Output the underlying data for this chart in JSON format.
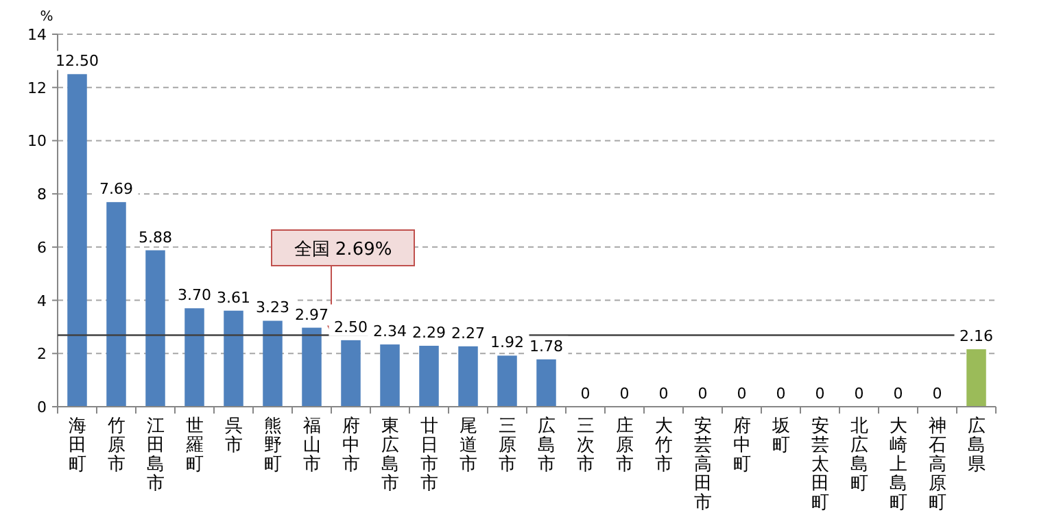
{
  "chart_data": {
    "type": "bar",
    "ylabel": "%",
    "categories": [
      "海田町",
      "竹原市",
      "江田島市",
      "世羅町",
      "呉市",
      "熊野町",
      "福山市",
      "府中市",
      "東広島市",
      "廿日市市",
      "尾道市",
      "三原市",
      "広島市",
      "三次市",
      "庄原市",
      "大竹市",
      "安芸高田市",
      "府中町",
      "坂町",
      "安芸太田町",
      "北広島町",
      "大崎上島町",
      "神石高原町",
      "広島県"
    ],
    "values": [
      12.5,
      7.69,
      5.88,
      3.7,
      3.61,
      3.23,
      2.97,
      2.5,
      2.34,
      2.29,
      2.27,
      1.92,
      1.78,
      0,
      0,
      0,
      0,
      0,
      0,
      0,
      0,
      0,
      0,
      2.16
    ],
    "value_labels": [
      "12.50",
      "7.69",
      "5.88",
      "3.70",
      "3.61",
      "3.23",
      "2.97",
      "2.50",
      "2.34",
      "2.29",
      "2.27",
      "1.92",
      "1.78",
      "0",
      "0",
      "0",
      "0",
      "0",
      "0",
      "0",
      "0",
      "0",
      "0",
      "2.16"
    ],
    "colors": [
      "#4f81bd",
      "#4f81bd",
      "#4f81bd",
      "#4f81bd",
      "#4f81bd",
      "#4f81bd",
      "#4f81bd",
      "#4f81bd",
      "#4f81bd",
      "#4f81bd",
      "#4f81bd",
      "#4f81bd",
      "#4f81bd",
      "#4f81bd",
      "#4f81bd",
      "#4f81bd",
      "#4f81bd",
      "#4f81bd",
      "#4f81bd",
      "#4f81bd",
      "#4f81bd",
      "#4f81bd",
      "#4f81bd",
      "#9bbb59"
    ],
    "ylim": [
      0,
      14
    ],
    "yticks": [
      0,
      2,
      4,
      6,
      8,
      10,
      12,
      14
    ],
    "grid": "y",
    "ref_lines": [
      {
        "axis": "y",
        "value": 2.69,
        "label": "全国 2.69%",
        "color": "#404040"
      }
    ]
  }
}
